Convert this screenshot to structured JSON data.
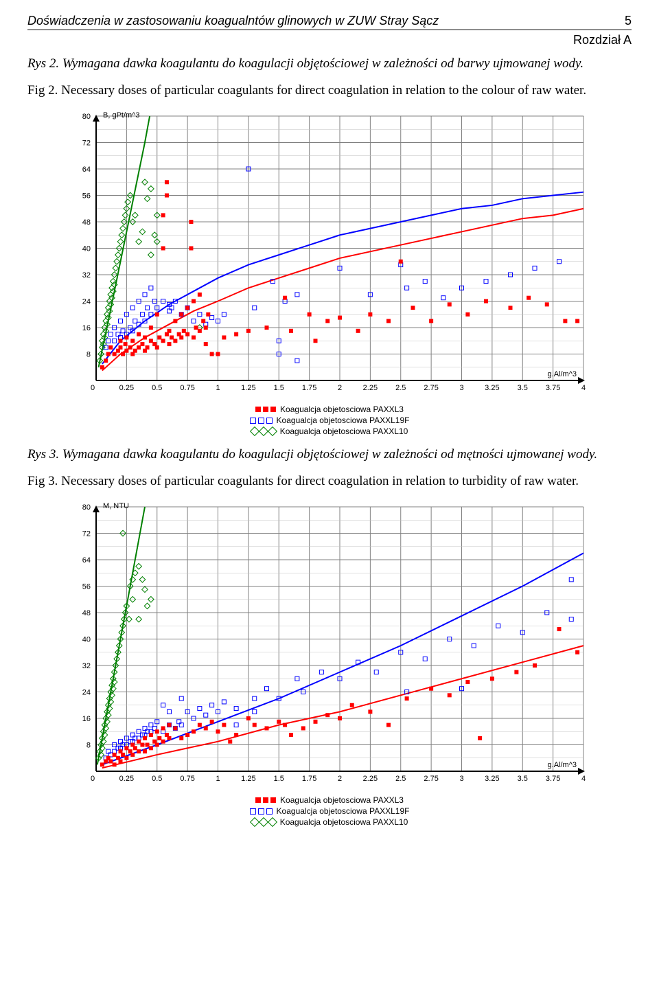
{
  "header": {
    "title": "Doświadczenia w zastosowaniu koagualntów glinowych w ZUW Stray Sącz",
    "page_number": "5",
    "chapter": "Rozdział A"
  },
  "caption1": {
    "pl": "Rys 2. Wymagana dawka koagulantu do koagulacji objętościowej w zależności od barwy ujmowanej wody.",
    "en": "Fig 2. Necessary doses of particular coagulants for direct coagulation in relation to the colour of raw water."
  },
  "caption2": {
    "pl": "Rys 3. Wymagana dawka koagulantu do koagulacji objętościowej w zależności od mętności ujmowanej wody.",
    "en": "Fig 3. Necessary doses of particular coagulants for direct coagulation in relation to turbidity of raw water."
  },
  "legend": {
    "item1": "Koagualcja objetosciowa PAXXL3",
    "item2": "Koagualcja objetosciowa PAXXL19F",
    "item3": "Koagualcja objetosciowa PAXXL10"
  },
  "chart_common": {
    "x_label": "g.Al/m^3",
    "xlim": [
      0,
      4
    ],
    "xticks": [
      0,
      0.25,
      0.5,
      0.75,
      1,
      1.25,
      1.5,
      1.75,
      2,
      2.25,
      2.5,
      2.75,
      3,
      3.25,
      3.5,
      3.75,
      4
    ],
    "ylim": [
      0,
      80
    ],
    "yticks": [
      0,
      8,
      16,
      24,
      32,
      40,
      48,
      56,
      64,
      72,
      80
    ],
    "grid_color": "#808080",
    "minor_grid_color": "#c0c0c0",
    "background": "#ffffff",
    "axis_font_size": 11,
    "series_colors": {
      "red": "#ff0000",
      "blue": "#0000ff",
      "green": "#008000"
    },
    "marker_size": 6,
    "line_width": 2
  },
  "chart1": {
    "y_label": "B, gPt/m^3",
    "type": "scatter_with_trend",
    "red_points": [
      [
        0.05,
        4
      ],
      [
        0.08,
        6
      ],
      [
        0.1,
        8
      ],
      [
        0.12,
        10
      ],
      [
        0.15,
        8
      ],
      [
        0.18,
        9
      ],
      [
        0.2,
        10
      ],
      [
        0.2,
        12
      ],
      [
        0.22,
        8
      ],
      [
        0.24,
        11
      ],
      [
        0.25,
        9
      ],
      [
        0.25,
        13
      ],
      [
        0.28,
        10
      ],
      [
        0.3,
        8
      ],
      [
        0.3,
        12
      ],
      [
        0.32,
        9
      ],
      [
        0.35,
        10
      ],
      [
        0.35,
        14
      ],
      [
        0.38,
        11
      ],
      [
        0.4,
        9
      ],
      [
        0.4,
        13
      ],
      [
        0.42,
        10
      ],
      [
        0.45,
        12
      ],
      [
        0.45,
        16
      ],
      [
        0.48,
        11
      ],
      [
        0.5,
        10
      ],
      [
        0.5,
        20
      ],
      [
        0.52,
        13
      ],
      [
        0.55,
        12
      ],
      [
        0.55,
        40
      ],
      [
        0.55,
        50
      ],
      [
        0.58,
        14
      ],
      [
        0.58,
        56
      ],
      [
        0.58,
        60
      ],
      [
        0.6,
        11
      ],
      [
        0.6,
        15
      ],
      [
        0.62,
        13
      ],
      [
        0.65,
        12
      ],
      [
        0.65,
        18
      ],
      [
        0.68,
        14
      ],
      [
        0.7,
        13
      ],
      [
        0.7,
        20
      ],
      [
        0.72,
        15
      ],
      [
        0.75,
        14
      ],
      [
        0.75,
        22
      ],
      [
        0.78,
        40
      ],
      [
        0.78,
        48
      ],
      [
        0.8,
        13
      ],
      [
        0.8,
        24
      ],
      [
        0.82,
        16
      ],
      [
        0.85,
        15
      ],
      [
        0.85,
        26
      ],
      [
        0.88,
        18
      ],
      [
        0.9,
        16
      ],
      [
        0.9,
        11
      ],
      [
        0.92,
        20
      ],
      [
        0.95,
        8
      ],
      [
        1.0,
        8
      ],
      [
        1.05,
        13
      ],
      [
        1.15,
        14
      ],
      [
        1.25,
        15
      ],
      [
        1.4,
        16
      ],
      [
        1.55,
        25
      ],
      [
        1.6,
        15
      ],
      [
        1.75,
        20
      ],
      [
        1.8,
        12
      ],
      [
        1.9,
        18
      ],
      [
        2.0,
        19
      ],
      [
        2.15,
        15
      ],
      [
        2.25,
        20
      ],
      [
        2.4,
        18
      ],
      [
        2.5,
        36
      ],
      [
        2.6,
        22
      ],
      [
        2.75,
        18
      ],
      [
        2.9,
        23
      ],
      [
        3.05,
        20
      ],
      [
        3.2,
        24
      ],
      [
        3.4,
        22
      ],
      [
        3.55,
        25
      ],
      [
        3.7,
        23
      ],
      [
        3.85,
        18
      ],
      [
        3.95,
        18
      ]
    ],
    "blue_points": [
      [
        0.08,
        10
      ],
      [
        0.1,
        12
      ],
      [
        0.12,
        14
      ],
      [
        0.15,
        12
      ],
      [
        0.15,
        16
      ],
      [
        0.18,
        14
      ],
      [
        0.2,
        13
      ],
      [
        0.2,
        18
      ],
      [
        0.22,
        15
      ],
      [
        0.25,
        14
      ],
      [
        0.25,
        20
      ],
      [
        0.28,
        16
      ],
      [
        0.3,
        15
      ],
      [
        0.3,
        22
      ],
      [
        0.32,
        18
      ],
      [
        0.35,
        17
      ],
      [
        0.35,
        24
      ],
      [
        0.38,
        20
      ],
      [
        0.4,
        18
      ],
      [
        0.4,
        26
      ],
      [
        0.42,
        22
      ],
      [
        0.45,
        20
      ],
      [
        0.45,
        28
      ],
      [
        0.48,
        24
      ],
      [
        0.5,
        22
      ],
      [
        0.55,
        24
      ],
      [
        0.6,
        21
      ],
      [
        0.62,
        22
      ],
      [
        0.6,
        23
      ],
      [
        0.65,
        24
      ],
      [
        0.7,
        20
      ],
      [
        0.75,
        22
      ],
      [
        0.8,
        18
      ],
      [
        0.85,
        20
      ],
      [
        0.9,
        17
      ],
      [
        0.95,
        19
      ],
      [
        1.0,
        18
      ],
      [
        1.05,
        20
      ],
      [
        1.25,
        64
      ],
      [
        1.3,
        22
      ],
      [
        1.45,
        30
      ],
      [
        1.5,
        8
      ],
      [
        1.5,
        12
      ],
      [
        1.55,
        24
      ],
      [
        1.65,
        26
      ],
      [
        1.65,
        6
      ],
      [
        2.0,
        34
      ],
      [
        2.5,
        35
      ],
      [
        2.25,
        26
      ],
      [
        2.55,
        28
      ],
      [
        2.7,
        30
      ],
      [
        2.85,
        25
      ],
      [
        3.0,
        28
      ],
      [
        3.2,
        30
      ],
      [
        3.4,
        32
      ],
      [
        3.6,
        34
      ],
      [
        3.8,
        36
      ]
    ],
    "green_points": [
      [
        0.03,
        6
      ],
      [
        0.04,
        8
      ],
      [
        0.05,
        10
      ],
      [
        0.05,
        12
      ],
      [
        0.06,
        14
      ],
      [
        0.06,
        11
      ],
      [
        0.07,
        16
      ],
      [
        0.07,
        13
      ],
      [
        0.08,
        18
      ],
      [
        0.08,
        15
      ],
      [
        0.09,
        20
      ],
      [
        0.09,
        17
      ],
      [
        0.1,
        22
      ],
      [
        0.1,
        19
      ],
      [
        0.11,
        24
      ],
      [
        0.11,
        21
      ],
      [
        0.12,
        26
      ],
      [
        0.12,
        23
      ],
      [
        0.13,
        28
      ],
      [
        0.13,
        25
      ],
      [
        0.14,
        30
      ],
      [
        0.14,
        27
      ],
      [
        0.15,
        32
      ],
      [
        0.15,
        29
      ],
      [
        0.16,
        34
      ],
      [
        0.17,
        36
      ],
      [
        0.18,
        38
      ],
      [
        0.19,
        40
      ],
      [
        0.2,
        42
      ],
      [
        0.21,
        44
      ],
      [
        0.22,
        46
      ],
      [
        0.23,
        48
      ],
      [
        0.24,
        50
      ],
      [
        0.25,
        52
      ],
      [
        0.26,
        54
      ],
      [
        0.28,
        56
      ],
      [
        0.3,
        48
      ],
      [
        0.32,
        50
      ],
      [
        0.35,
        42
      ],
      [
        0.38,
        45
      ],
      [
        0.4,
        60
      ],
      [
        0.42,
        55
      ],
      [
        0.45,
        38
      ],
      [
        0.45,
        58
      ],
      [
        0.48,
        44
      ],
      [
        0.5,
        50
      ],
      [
        0.5,
        42
      ],
      [
        0.85,
        16
      ]
    ],
    "red_curve": [
      [
        0.05,
        3
      ],
      [
        0.2,
        8
      ],
      [
        0.4,
        13
      ],
      [
        0.6,
        17
      ],
      [
        0.8,
        21
      ],
      [
        1.0,
        24
      ],
      [
        1.25,
        28
      ],
      [
        1.5,
        31
      ],
      [
        1.75,
        34
      ],
      [
        2.0,
        37
      ],
      [
        2.25,
        39
      ],
      [
        2.5,
        41
      ],
      [
        2.75,
        43
      ],
      [
        3.0,
        45
      ],
      [
        3.25,
        47
      ],
      [
        3.5,
        49
      ],
      [
        3.75,
        50
      ],
      [
        4.0,
        52
      ]
    ],
    "blue_curve": [
      [
        0.05,
        5
      ],
      [
        0.2,
        12
      ],
      [
        0.4,
        18
      ],
      [
        0.6,
        23
      ],
      [
        0.8,
        27
      ],
      [
        1.0,
        31
      ],
      [
        1.25,
        35
      ],
      [
        1.5,
        38
      ],
      [
        1.75,
        41
      ],
      [
        2.0,
        44
      ],
      [
        2.25,
        46
      ],
      [
        2.5,
        48
      ],
      [
        2.75,
        50
      ],
      [
        3.0,
        52
      ],
      [
        3.25,
        53
      ],
      [
        3.5,
        55
      ],
      [
        3.75,
        56
      ],
      [
        4.0,
        57
      ]
    ],
    "green_curve": [
      [
        0.02,
        4
      ],
      [
        0.1,
        18
      ],
      [
        0.2,
        36
      ],
      [
        0.3,
        54
      ],
      [
        0.4,
        72
      ],
      [
        0.44,
        80
      ]
    ]
  },
  "chart2": {
    "y_label": "M, NTU",
    "type": "scatter_with_trend",
    "red_points": [
      [
        0.05,
        2
      ],
      [
        0.08,
        3
      ],
      [
        0.1,
        4
      ],
      [
        0.12,
        3
      ],
      [
        0.15,
        2
      ],
      [
        0.15,
        5
      ],
      [
        0.18,
        4
      ],
      [
        0.2,
        3
      ],
      [
        0.2,
        6
      ],
      [
        0.22,
        5
      ],
      [
        0.25,
        4
      ],
      [
        0.25,
        7
      ],
      [
        0.28,
        6
      ],
      [
        0.3,
        5
      ],
      [
        0.3,
        8
      ],
      [
        0.32,
        7
      ],
      [
        0.35,
        6
      ],
      [
        0.35,
        9
      ],
      [
        0.38,
        8
      ],
      [
        0.4,
        6
      ],
      [
        0.4,
        10
      ],
      [
        0.42,
        8
      ],
      [
        0.45,
        7
      ],
      [
        0.45,
        11
      ],
      [
        0.48,
        9
      ],
      [
        0.5,
        8
      ],
      [
        0.5,
        12
      ],
      [
        0.52,
        10
      ],
      [
        0.55,
        9
      ],
      [
        0.55,
        13
      ],
      [
        0.58,
        11
      ],
      [
        0.6,
        10
      ],
      [
        0.6,
        14
      ],
      [
        0.65,
        13
      ],
      [
        0.7,
        10
      ],
      [
        0.75,
        11
      ],
      [
        0.8,
        12
      ],
      [
        0.85,
        14
      ],
      [
        0.9,
        13
      ],
      [
        0.95,
        15
      ],
      [
        1.0,
        12
      ],
      [
        1.05,
        14
      ],
      [
        1.1,
        9
      ],
      [
        1.15,
        11
      ],
      [
        1.25,
        16
      ],
      [
        1.3,
        14
      ],
      [
        1.4,
        13
      ],
      [
        1.5,
        15
      ],
      [
        1.55,
        14
      ],
      [
        1.6,
        11
      ],
      [
        1.7,
        13
      ],
      [
        1.8,
        15
      ],
      [
        1.9,
        17
      ],
      [
        2.0,
        16
      ],
      [
        2.1,
        20
      ],
      [
        2.25,
        18
      ],
      [
        2.4,
        14
      ],
      [
        2.55,
        22
      ],
      [
        2.75,
        25
      ],
      [
        2.9,
        23
      ],
      [
        3.05,
        27
      ],
      [
        3.15,
        10
      ],
      [
        3.25,
        28
      ],
      [
        3.45,
        30
      ],
      [
        3.6,
        32
      ],
      [
        3.8,
        43
      ],
      [
        3.95,
        36
      ]
    ],
    "blue_points": [
      [
        0.08,
        4
      ],
      [
        0.1,
        6
      ],
      [
        0.12,
        5
      ],
      [
        0.15,
        8
      ],
      [
        0.15,
        6
      ],
      [
        0.18,
        7
      ],
      [
        0.2,
        9
      ],
      [
        0.2,
        7
      ],
      [
        0.22,
        8
      ],
      [
        0.25,
        10
      ],
      [
        0.25,
        8
      ],
      [
        0.28,
        9
      ],
      [
        0.3,
        11
      ],
      [
        0.3,
        9
      ],
      [
        0.32,
        10
      ],
      [
        0.35,
        12
      ],
      [
        0.35,
        10
      ],
      [
        0.38,
        11
      ],
      [
        0.4,
        13
      ],
      [
        0.4,
        11
      ],
      [
        0.42,
        12
      ],
      [
        0.45,
        14
      ],
      [
        0.45,
        12
      ],
      [
        0.48,
        13
      ],
      [
        0.5,
        15
      ],
      [
        0.55,
        12
      ],
      [
        0.55,
        20
      ],
      [
        0.6,
        18
      ],
      [
        0.6,
        14
      ],
      [
        0.65,
        13
      ],
      [
        0.68,
        15
      ],
      [
        0.7,
        14
      ],
      [
        0.7,
        22
      ],
      [
        0.75,
        18
      ],
      [
        0.8,
        16
      ],
      [
        0.85,
        19
      ],
      [
        0.9,
        17
      ],
      [
        0.95,
        20
      ],
      [
        1.0,
        18
      ],
      [
        1.05,
        21
      ],
      [
        1.15,
        14
      ],
      [
        1.15,
        19
      ],
      [
        1.3,
        22
      ],
      [
        1.3,
        18
      ],
      [
        1.4,
        25
      ],
      [
        1.5,
        22
      ],
      [
        1.65,
        28
      ],
      [
        1.7,
        24
      ],
      [
        1.85,
        30
      ],
      [
        2.0,
        28
      ],
      [
        2.15,
        33
      ],
      [
        2.3,
        30
      ],
      [
        2.5,
        36
      ],
      [
        2.55,
        24
      ],
      [
        2.7,
        34
      ],
      [
        2.9,
        40
      ],
      [
        3.0,
        25
      ],
      [
        3.1,
        38
      ],
      [
        3.3,
        44
      ],
      [
        3.5,
        42
      ],
      [
        3.7,
        48
      ],
      [
        3.9,
        58
      ],
      [
        3.9,
        46
      ]
    ],
    "green_points": [
      [
        0.02,
        4
      ],
      [
        0.03,
        6
      ],
      [
        0.04,
        8
      ],
      [
        0.04,
        5
      ],
      [
        0.05,
        10
      ],
      [
        0.05,
        7
      ],
      [
        0.06,
        12
      ],
      [
        0.06,
        9
      ],
      [
        0.07,
        14
      ],
      [
        0.07,
        11
      ],
      [
        0.08,
        16
      ],
      [
        0.08,
        13
      ],
      [
        0.09,
        18
      ],
      [
        0.09,
        15
      ],
      [
        0.1,
        20
      ],
      [
        0.1,
        17
      ],
      [
        0.11,
        22
      ],
      [
        0.11,
        19
      ],
      [
        0.12,
        24
      ],
      [
        0.12,
        21
      ],
      [
        0.13,
        26
      ],
      [
        0.13,
        23
      ],
      [
        0.14,
        28
      ],
      [
        0.14,
        25
      ],
      [
        0.15,
        30
      ],
      [
        0.15,
        27
      ],
      [
        0.16,
        32
      ],
      [
        0.17,
        34
      ],
      [
        0.18,
        36
      ],
      [
        0.19,
        38
      ],
      [
        0.2,
        40
      ],
      [
        0.21,
        42
      ],
      [
        0.22,
        44
      ],
      [
        0.23,
        46
      ],
      [
        0.24,
        48
      ],
      [
        0.25,
        50
      ],
      [
        0.27,
        46
      ],
      [
        0.28,
        56
      ],
      [
        0.3,
        58
      ],
      [
        0.3,
        52
      ],
      [
        0.32,
        60
      ],
      [
        0.35,
        62
      ],
      [
        0.35,
        46
      ],
      [
        0.38,
        58
      ],
      [
        0.4,
        55
      ],
      [
        0.42,
        50
      ],
      [
        0.45,
        52
      ],
      [
        0.22,
        72
      ]
    ],
    "red_curve": [
      [
        0.05,
        1
      ],
      [
        0.5,
        5
      ],
      [
        1.0,
        9
      ],
      [
        1.5,
        14
      ],
      [
        2.0,
        18
      ],
      [
        2.5,
        23
      ],
      [
        3.0,
        28
      ],
      [
        3.5,
        33
      ],
      [
        4.0,
        38
      ]
    ],
    "blue_curve": [
      [
        0.05,
        2
      ],
      [
        0.5,
        8
      ],
      [
        1.0,
        15
      ],
      [
        1.5,
        22
      ],
      [
        2.0,
        30
      ],
      [
        2.5,
        38
      ],
      [
        3.0,
        47
      ],
      [
        3.5,
        56
      ],
      [
        4.0,
        66
      ]
    ],
    "green_curve": [
      [
        0.01,
        2
      ],
      [
        0.1,
        20
      ],
      [
        0.2,
        40
      ],
      [
        0.3,
        60
      ],
      [
        0.4,
        80
      ]
    ]
  }
}
